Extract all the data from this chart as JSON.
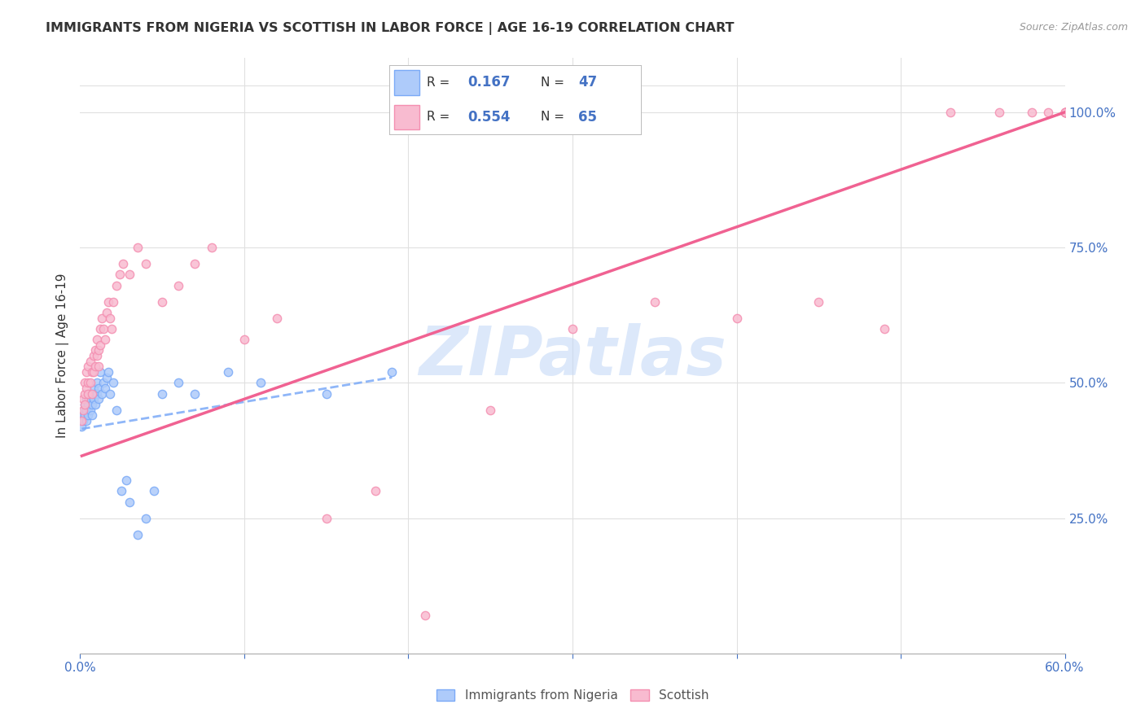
{
  "title": "IMMIGRANTS FROM NIGERIA VS SCOTTISH IN LABOR FORCE | AGE 16-19 CORRELATION CHART",
  "source": "Source: ZipAtlas.com",
  "ylabel": "In Labor Force | Age 16-19",
  "nigeria_color": "#7baaf7",
  "nigeria_fill": "#aecbfa",
  "scottish_color": "#f48fb1",
  "scottish_fill": "#f8bbd0",
  "trend_nigeria_color": "#7baaf7",
  "trend_scottish_color": "#f06292",
  "watermark_text": "ZIPatlas",
  "watermark_color": "#c5d9f7",
  "legend_R_nigeria": "0.167",
  "legend_N_nigeria": "47",
  "legend_R_scottish": "0.554",
  "legend_N_scottish": "65",
  "nigeria_x": [
    0.001,
    0.002,
    0.002,
    0.003,
    0.003,
    0.003,
    0.004,
    0.004,
    0.004,
    0.005,
    0.005,
    0.005,
    0.006,
    0.006,
    0.007,
    0.007,
    0.007,
    0.008,
    0.008,
    0.009,
    0.009,
    0.01,
    0.01,
    0.011,
    0.011,
    0.012,
    0.013,
    0.014,
    0.015,
    0.016,
    0.017,
    0.018,
    0.02,
    0.022,
    0.025,
    0.028,
    0.03,
    0.035,
    0.04,
    0.045,
    0.05,
    0.06,
    0.07,
    0.09,
    0.11,
    0.15,
    0.19
  ],
  "nigeria_y": [
    0.42,
    0.44,
    0.43,
    0.45,
    0.46,
    0.44,
    0.47,
    0.45,
    0.43,
    0.46,
    0.48,
    0.44,
    0.47,
    0.45,
    0.48,
    0.46,
    0.44,
    0.49,
    0.47,
    0.48,
    0.46,
    0.5,
    0.48,
    0.49,
    0.47,
    0.52,
    0.48,
    0.5,
    0.49,
    0.51,
    0.52,
    0.48,
    0.5,
    0.45,
    0.3,
    0.32,
    0.28,
    0.22,
    0.25,
    0.3,
    0.48,
    0.5,
    0.48,
    0.52,
    0.5,
    0.48,
    0.52
  ],
  "scottish_x": [
    0.001,
    0.002,
    0.002,
    0.003,
    0.003,
    0.003,
    0.004,
    0.004,
    0.005,
    0.005,
    0.005,
    0.006,
    0.006,
    0.007,
    0.007,
    0.008,
    0.008,
    0.009,
    0.009,
    0.01,
    0.01,
    0.011,
    0.011,
    0.012,
    0.012,
    0.013,
    0.014,
    0.015,
    0.016,
    0.017,
    0.018,
    0.019,
    0.02,
    0.022,
    0.024,
    0.026,
    0.03,
    0.035,
    0.04,
    0.05,
    0.06,
    0.07,
    0.08,
    0.1,
    0.12,
    0.15,
    0.18,
    0.21,
    0.25,
    0.3,
    0.35,
    0.4,
    0.45,
    0.49,
    0.53,
    0.56,
    0.58,
    0.59,
    0.6,
    0.6,
    0.6,
    0.6,
    0.6,
    0.6,
    0.6
  ],
  "scottish_y": [
    0.43,
    0.45,
    0.47,
    0.48,
    0.5,
    0.46,
    0.52,
    0.49,
    0.5,
    0.53,
    0.48,
    0.54,
    0.5,
    0.52,
    0.48,
    0.55,
    0.52,
    0.53,
    0.56,
    0.55,
    0.58,
    0.56,
    0.53,
    0.57,
    0.6,
    0.62,
    0.6,
    0.58,
    0.63,
    0.65,
    0.62,
    0.6,
    0.65,
    0.68,
    0.7,
    0.72,
    0.7,
    0.75,
    0.72,
    0.65,
    0.68,
    0.72,
    0.75,
    0.58,
    0.62,
    0.25,
    0.3,
    0.07,
    0.45,
    0.6,
    0.65,
    0.62,
    0.65,
    0.6,
    1.0,
    1.0,
    1.0,
    1.0,
    1.0,
    1.0,
    1.0,
    1.0,
    1.0,
    1.0,
    1.0
  ],
  "nigeria_trend_x": [
    0.001,
    0.19
  ],
  "nigeria_trend_y": [
    0.415,
    0.51
  ],
  "scottish_trend_x": [
    0.001,
    0.6
  ],
  "scottish_trend_y": [
    0.365,
    1.0
  ],
  "xlim": [
    0.0,
    0.6
  ],
  "ylim": [
    0.0,
    1.1
  ],
  "yticks_right": [
    0.25,
    0.5,
    0.75,
    1.0
  ],
  "background_color": "#ffffff",
  "grid_color": "#e0e0e0",
  "text_color": "#333333",
  "blue_color": "#4472c4"
}
